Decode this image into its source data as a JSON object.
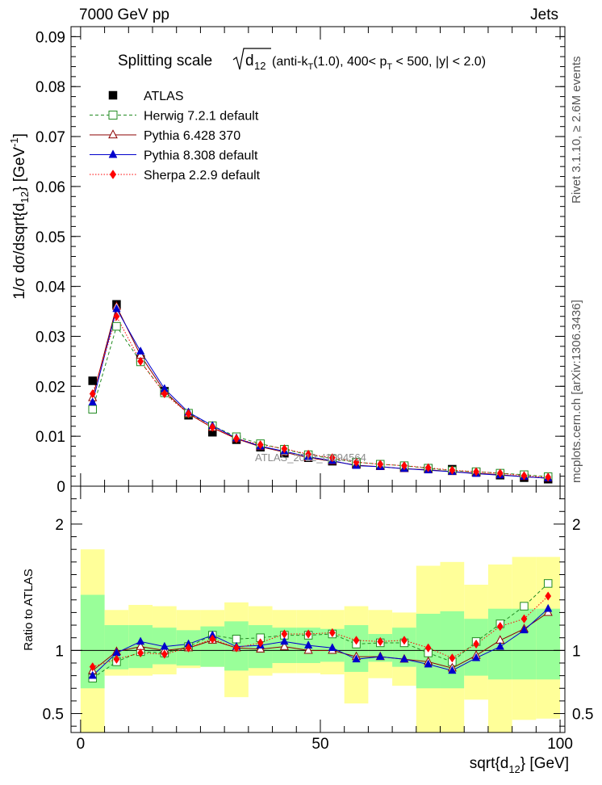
{
  "header": {
    "left": "7000 GeV pp",
    "right": "Jets"
  },
  "side_labels": {
    "rivet": "Rivet 3.1.10, ≥ 2.6M events",
    "mcplots": "mcplots.cern.ch [arXiv:1306.3436]"
  },
  "watermark": "ATLAS_2012_I1094564",
  "chart_data": [
    {
      "type": "scatter",
      "title": "Splitting scale √d12 (anti-kT(1.0), 400< pT < 500, |y| < 2.0)",
      "xlabel": "sqrt{d12} [GeV]",
      "ylabel": "1/σ dσ/dsqrt{d12} [GeV⁻¹]",
      "xlim": [
        -2,
        101
      ],
      "ylim": [
        0,
        0.092
      ],
      "yticks": [
        "0",
        "0.01",
        "0.02",
        "0.03",
        "0.04",
        "0.05",
        "0.06",
        "0.07",
        "0.08",
        "0.09"
      ],
      "x": [
        2.5,
        7.5,
        12.5,
        17.5,
        22.5,
        27.5,
        32.5,
        37.5,
        42.5,
        47.5,
        52.5,
        57.5,
        62.5,
        67.5,
        72.5,
        77.5,
        82.5,
        87.5,
        92.5,
        97.5
      ],
      "legend_position": "top-left",
      "series": [
        {
          "name": "ATLAS",
          "color": "#000000",
          "marker": "square-filled",
          "values": [
            0.0211,
            0.0364,
            0.0254,
            0.019,
            0.0142,
            0.0108,
            0.0093,
            0.0078,
            0.0066,
            0.0057,
            0.005,
            0.0044,
            0.0041,
            0.0038,
            0.0036,
            0.0034,
            0.0028,
            0.0022,
            0.0017,
            0.0014
          ]
        },
        {
          "name": "Herwig 7.2.1 default",
          "color": "#228B22",
          "marker": "square-open",
          "line": "dashed",
          "values": [
            0.0154,
            0.032,
            0.0249,
            0.0187,
            0.0146,
            0.0121,
            0.0099,
            0.0085,
            0.0074,
            0.0063,
            0.0055,
            0.0048,
            0.0044,
            0.0041,
            0.0036,
            0.0031,
            0.0029,
            0.0026,
            0.0023,
            0.0019
          ]
        },
        {
          "name": "Pythia 6.428 370",
          "color": "#8B0000",
          "marker": "triangle-open",
          "line": "solid",
          "values": [
            0.0177,
            0.036,
            0.0262,
            0.019,
            0.0145,
            0.0117,
            0.0095,
            0.0079,
            0.0068,
            0.0057,
            0.005,
            0.0042,
            0.0039,
            0.0035,
            0.0033,
            0.0029,
            0.0026,
            0.0023,
            0.0019,
            0.0016
          ]
        },
        {
          "name": "Pythia 8.308 default",
          "color": "#0000CC",
          "marker": "triangle-filled",
          "line": "solid",
          "values": [
            0.0168,
            0.0355,
            0.027,
            0.0195,
            0.0148,
            0.0121,
            0.0096,
            0.008,
            0.007,
            0.0059,
            0.0051,
            0.0041,
            0.0039,
            0.0035,
            0.0032,
            0.0029,
            0.0025,
            0.0022,
            0.0019,
            0.0016
          ]
        },
        {
          "name": "Sherpa 2.2.9 default",
          "color": "#FF0000",
          "marker": "diamond-filled",
          "line": "dotted",
          "values": [
            0.0185,
            0.034,
            0.025,
            0.0185,
            0.0145,
            0.0118,
            0.0095,
            0.0083,
            0.0075,
            0.0064,
            0.0057,
            0.0048,
            0.0044,
            0.0041,
            0.0037,
            0.0032,
            0.0029,
            0.0026,
            0.0021,
            0.0018
          ]
        }
      ]
    },
    {
      "type": "scatter",
      "ylabel": "Ratio to ATLAS",
      "xlabel": "sqrt{d12} [GeV]",
      "xlim": [
        -2,
        101
      ],
      "ylim": [
        0.35,
        2.3
      ],
      "yticks": [
        "0.5",
        "1",
        "2"
      ],
      "xticks": [
        "0",
        "50",
        "100"
      ],
      "x": [
        2.5,
        7.5,
        12.5,
        17.5,
        22.5,
        27.5,
        32.5,
        37.5,
        42.5,
        47.5,
        52.5,
        57.5,
        62.5,
        67.5,
        72.5,
        77.5,
        82.5,
        87.5,
        92.5,
        97.5
      ],
      "bands": {
        "stat": {
          "color": "#99FF99",
          "lo": [
            0.7,
            0.85,
            0.86,
            0.89,
            0.88,
            0.87,
            0.84,
            0.86,
            0.9,
            0.9,
            0.91,
            0.83,
            0.91,
            0.87,
            0.7,
            0.7,
            0.8,
            0.77,
            0.77,
            0.77
          ],
          "hi": [
            1.44,
            1.2,
            1.2,
            1.18,
            1.16,
            1.19,
            1.23,
            1.2,
            1.18,
            1.18,
            1.17,
            1.2,
            1.13,
            1.18,
            1.29,
            1.31,
            1.25,
            1.33,
            1.33,
            1.33
          ]
        },
        "total": {
          "color": "#FFFF99",
          "lo": [
            0.35,
            0.8,
            0.8,
            0.81,
            0.86,
            0.87,
            0.63,
            0.8,
            0.82,
            0.82,
            0.81,
            0.58,
            0.78,
            0.72,
            0.35,
            0.35,
            0.61,
            0.35,
            0.45,
            0.46
          ],
          "hi": [
            1.8,
            1.32,
            1.36,
            1.35,
            1.32,
            1.32,
            1.38,
            1.35,
            1.32,
            1.32,
            1.32,
            1.35,
            1.32,
            1.3,
            1.67,
            1.7,
            1.52,
            1.68,
            1.74,
            1.74
          ]
        }
      },
      "series": [
        {
          "name": "Herwig 7.2.1 default",
          "color": "#228B22",
          "marker": "square-open",
          "line": "dashed",
          "values": [
            0.78,
            0.91,
            0.99,
            0.98,
            1.03,
            1.12,
            1.09,
            1.1,
            1.12,
            1.12,
            1.13,
            1.05,
            1.06,
            1.06,
            0.98,
            0.91,
            1.07,
            1.21,
            1.35,
            1.53
          ]
        },
        {
          "name": "Pythia 6.428 370",
          "color": "#8B0000",
          "marker": "triangle-open",
          "line": "solid",
          "values": [
            0.84,
            0.99,
            1.03,
            1.0,
            1.02,
            1.08,
            1.02,
            1.01,
            1.03,
            1.0,
            1.0,
            0.95,
            0.95,
            0.93,
            0.91,
            0.86,
            0.96,
            1.08,
            1.17,
            1.3
          ]
        },
        {
          "name": "Pythia 8.308 default",
          "color": "#0000CC",
          "marker": "triangle-filled",
          "line": "solid",
          "values": [
            0.8,
            0.98,
            1.07,
            1.03,
            1.05,
            1.12,
            1.03,
            1.04,
            1.07,
            1.04,
            1.02,
            0.93,
            0.95,
            0.93,
            0.89,
            0.84,
            0.94,
            1.03,
            1.16,
            1.33
          ]
        },
        {
          "name": "Sherpa 2.2.9 default",
          "color": "#FF0000",
          "marker": "diamond-filled",
          "line": "dotted",
          "values": [
            0.87,
            0.93,
            0.98,
            0.97,
            1.02,
            1.09,
            1.02,
            1.06,
            1.13,
            1.13,
            1.14,
            1.08,
            1.07,
            1.08,
            1.02,
            0.94,
            1.05,
            1.19,
            1.25,
            1.43
          ]
        }
      ]
    }
  ]
}
